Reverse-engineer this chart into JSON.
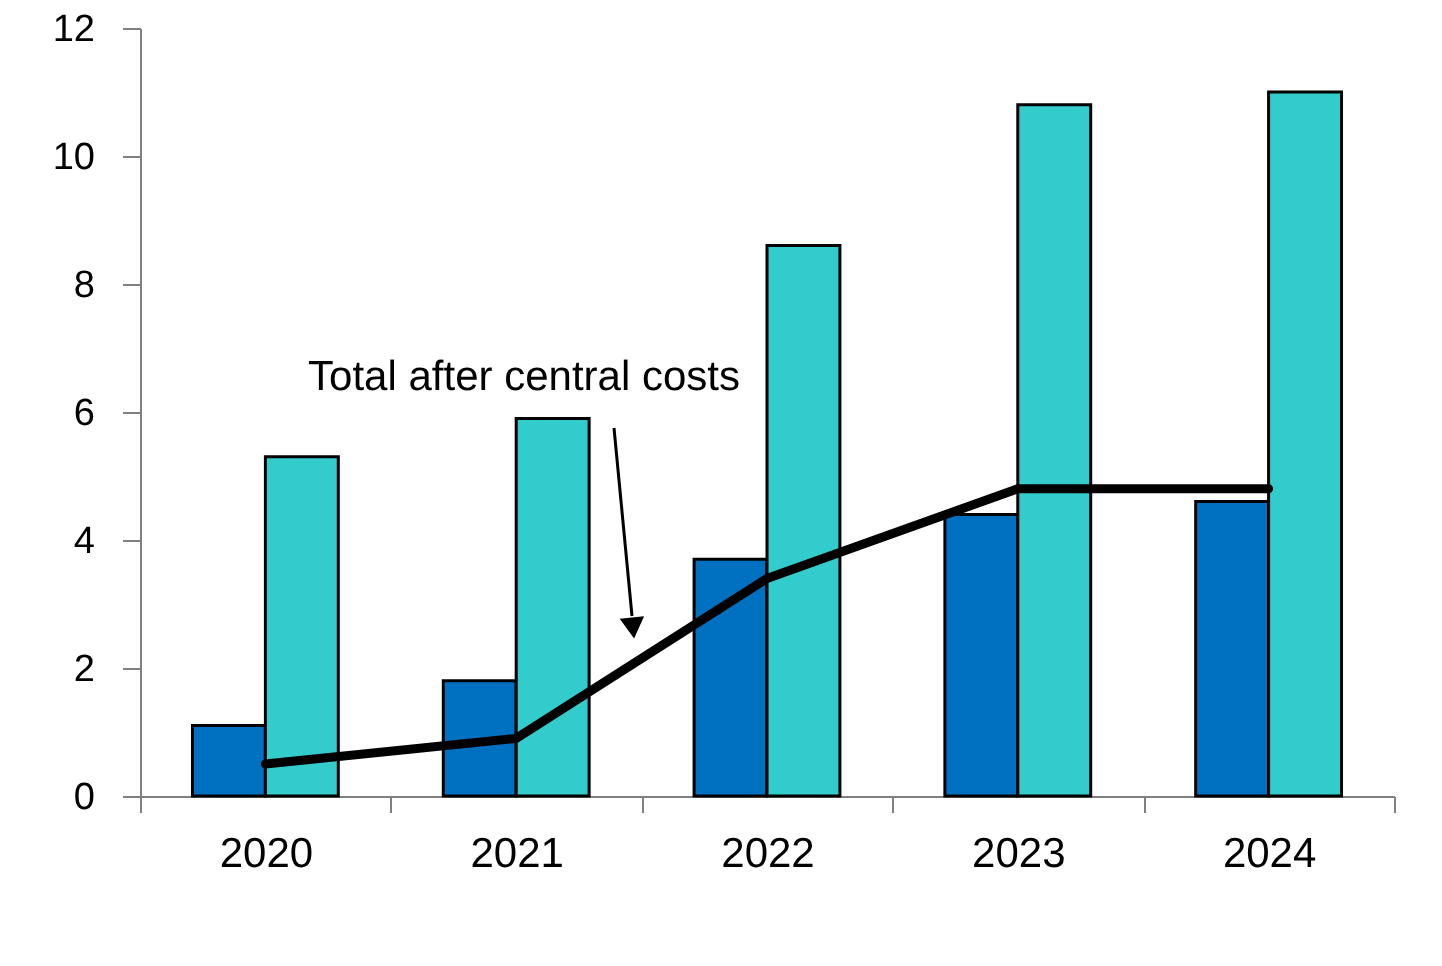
{
  "chart_data": {
    "type": "bar",
    "categories": [
      "2020",
      "2021",
      "2022",
      "2023",
      "2024"
    ],
    "series": [
      {
        "color": "#0070c0",
        "values": [
          1.1,
          1.8,
          3.7,
          4.4,
          4.6
        ]
      },
      {
        "color": "#33cccc",
        "values": [
          5.3,
          5.9,
          8.6,
          10.8,
          11.0
        ]
      },
      {
        "type": "line",
        "color": "#000000",
        "line_style": "solid",
        "values": [
          0.5,
          0.9,
          3.4,
          4.8,
          4.8
        ]
      }
    ],
    "ylim": [
      0,
      12
    ],
    "yticks": [
      0,
      2,
      4,
      6,
      8,
      10,
      12
    ],
    "grid": false,
    "annotations": [
      "Total after central costs"
    ]
  }
}
